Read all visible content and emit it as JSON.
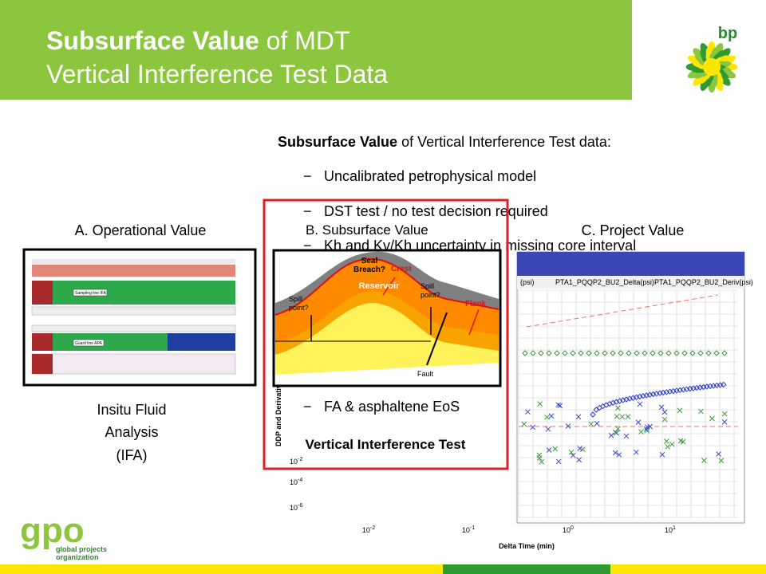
{
  "header": {
    "title_bold": "Subsurface Value",
    "title_rest": " of MDT",
    "title_line2": "Vertical Interference Test Data",
    "logo": "bp"
  },
  "body": {
    "heading_bold": "Subsurface Value",
    "heading_rest": " of Vertical Interference Test data:",
    "bullets": [
      "Uncalibrated petrophysical model",
      "DST test / no test decision required",
      "Kh and Kv/Kh uncertainty in missing core interval",
      "FA & asphaltene EoS"
    ],
    "bullet_marker": "−"
  },
  "panels": {
    "a": {
      "label": "A. Operational Value",
      "caption": [
        "Insitu Fluid",
        "Analysis",
        "(IFA)"
      ],
      "tracks": [
        "Sampling line IFA",
        "Guard line APA"
      ]
    },
    "b": {
      "label": "B. Subsurface Value",
      "caption": "Vertical Interference Test",
      "diagram": [
        "Seal",
        "Breach?",
        "Crest",
        "Spill",
        "point?",
        "Spill",
        "point?",
        "Reservoir",
        "Flank",
        "Fault"
      ]
    },
    "c": {
      "label": "C. Project Value",
      "legend": [
        "(psi)",
        "PTA1_PQQP2_BU2_Delta(psi)",
        "PTA1_PQQP2_BU2_Deriv(psi)"
      ],
      "x_label": "Delta Time (min)",
      "y_label": "DDP and Derivative",
      "xticks": [
        {
          "base": "10",
          "exp": "-2"
        },
        {
          "base": "10",
          "exp": "-1"
        },
        {
          "base": "10",
          "exp": "0"
        },
        {
          "base": "10",
          "exp": "1"
        }
      ],
      "yticks": [
        {
          "base": "10",
          "exp": "-2"
        },
        {
          "base": "10",
          "exp": "-4"
        },
        {
          "base": "10",
          "exp": "-6"
        }
      ]
    }
  },
  "footer": {
    "logo": "gpo",
    "org": [
      "global projects",
      "organization"
    ]
  }
}
